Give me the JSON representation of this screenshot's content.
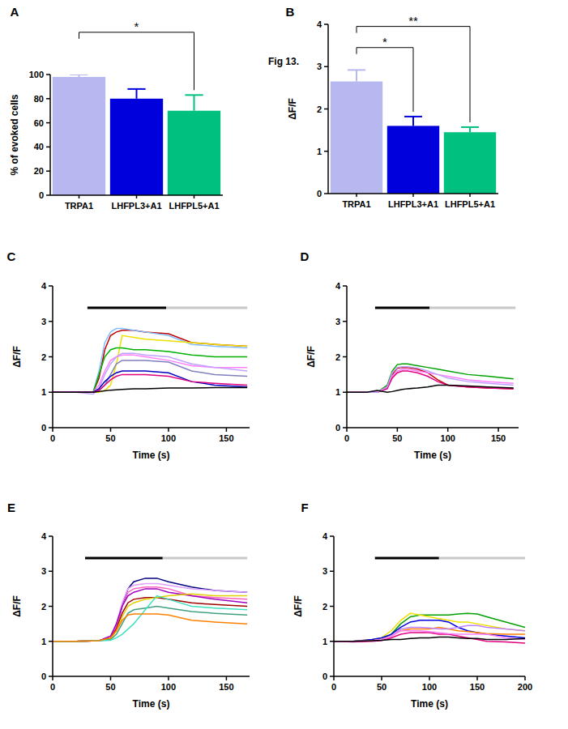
{
  "chart_data": [
    {
      "type": "bar",
      "title": "A",
      "categories": [
        "TRPA1",
        "LHFPL3+A1",
        "LHFPL5+A1"
      ],
      "values": [
        98,
        80,
        70
      ],
      "errors": [
        2,
        8,
        13
      ],
      "colors": [
        "#b8b8f0",
        "#0000dd",
        "#00c080"
      ],
      "ylabel": "% of evoked cells",
      "ylim": [
        0,
        100
      ],
      "yticks": [
        0,
        20,
        40,
        60,
        80,
        100
      ],
      "annotations": [
        {
          "text": "*",
          "from": 0,
          "to": 2,
          "y": 135
        }
      ]
    },
    {
      "type": "bar",
      "title": "B",
      "categories": [
        "TRPA1",
        "LHFPL3+A1",
        "LHFPL5+A1"
      ],
      "values": [
        2.65,
        1.6,
        1.45
      ],
      "errors": [
        0.27,
        0.22,
        0.12
      ],
      "colors": [
        "#b8b8f0",
        "#0000dd",
        "#00c080"
      ],
      "ylabel": "ΔF/F",
      "ylim": [
        0,
        4
      ],
      "yticks": [
        0,
        1,
        2,
        3,
        4
      ],
      "annotations": [
        {
          "text": "Fig 13."
        },
        {
          "text": "*",
          "from": 0,
          "to": 1,
          "y": 3.45
        },
        {
          "text": "**",
          "from": 0,
          "to": 2,
          "y": 3.95
        }
      ]
    },
    {
      "type": "line",
      "title": "C",
      "xlabel": "Time (s)",
      "ylabel": "ΔF/F",
      "xlim": [
        0,
        170
      ],
      "xticks": [
        0,
        50,
        100,
        150
      ],
      "ylim": [
        0,
        4
      ],
      "yticks": [
        0,
        1,
        2,
        3,
        4
      ],
      "stimulus": [
        {
          "start": 30,
          "end": 98,
          "color": "#000000"
        },
        {
          "start": 98,
          "end": 168,
          "color": "#c8c8c8"
        }
      ],
      "x": [
        0,
        20,
        35,
        40,
        45,
        50,
        55,
        60,
        70,
        80,
        100,
        120,
        140,
        168
      ],
      "series": [
        {
          "color": "#c00000",
          "values": [
            1,
            1,
            1,
            1.4,
            2.2,
            2.6,
            2.7,
            2.75,
            2.75,
            2.7,
            2.65,
            2.4,
            2.35,
            2.3
          ]
        },
        {
          "color": "#80c0ff",
          "values": [
            1,
            1,
            1,
            1.6,
            2.4,
            2.7,
            2.8,
            2.8,
            2.75,
            2.7,
            2.6,
            2.35,
            2.3,
            2.25
          ]
        },
        {
          "color": "#f0e000",
          "values": [
            1,
            1,
            1,
            1,
            1.05,
            1.2,
            1.8,
            2.6,
            2.55,
            2.5,
            2.45,
            2.4,
            2.35,
            2.3
          ]
        },
        {
          "color": "#00b000",
          "values": [
            1,
            1,
            1,
            1.5,
            2.0,
            2.2,
            2.25,
            2.25,
            2.2,
            2.2,
            2.15,
            2.05,
            2.0,
            2.0
          ]
        },
        {
          "color": "#ff80ff",
          "values": [
            1,
            1,
            1,
            1.2,
            1.6,
            1.9,
            2.0,
            2.05,
            2.05,
            2.0,
            1.9,
            1.75,
            1.7,
            1.7
          ]
        },
        {
          "color": "#c0a0ff",
          "values": [
            1,
            1,
            0.95,
            1.1,
            1.5,
            1.8,
            2.0,
            2.1,
            2.1,
            2.05,
            2.0,
            1.8,
            1.7,
            1.6
          ]
        },
        {
          "color": "#8080c0",
          "values": [
            1,
            1,
            1,
            1.05,
            1.2,
            1.5,
            1.8,
            1.9,
            1.9,
            1.9,
            1.85,
            1.6,
            1.5,
            1.45
          ]
        },
        {
          "color": "#0000c0",
          "values": [
            1,
            1,
            1,
            1.1,
            1.3,
            1.45,
            1.55,
            1.6,
            1.6,
            1.6,
            1.55,
            1.3,
            1.2,
            1.15
          ]
        },
        {
          "color": "#e00080",
          "values": [
            1,
            1,
            1,
            1.05,
            1.2,
            1.35,
            1.45,
            1.5,
            1.5,
            1.5,
            1.45,
            1.3,
            1.25,
            1.2
          ]
        },
        {
          "color": "#000000",
          "values": [
            1,
            1,
            1,
            1.02,
            1.04,
            1.06,
            1.07,
            1.08,
            1.1,
            1.1,
            1.12,
            1.12,
            1.13,
            1.13
          ]
        }
      ]
    },
    {
      "type": "line",
      "title": "D",
      "xlabel": "Time (s)",
      "ylabel": "ΔF/F",
      "xlim": [
        0,
        170
      ],
      "xticks": [
        0,
        50,
        100,
        150
      ],
      "ylim": [
        0,
        4
      ],
      "yticks": [
        0,
        1,
        2,
        3,
        4
      ],
      "stimulus": [
        {
          "start": 28,
          "end": 82,
          "color": "#000000"
        },
        {
          "start": 82,
          "end": 167,
          "color": "#c8c8c8"
        }
      ],
      "x": [
        0,
        20,
        30,
        40,
        45,
        50,
        55,
        60,
        70,
        80,
        90,
        100,
        120,
        140,
        165
      ],
      "series": [
        {
          "color": "#00a000",
          "values": [
            1,
            1,
            1,
            1.2,
            1.6,
            1.78,
            1.8,
            1.8,
            1.75,
            1.7,
            1.65,
            1.6,
            1.5,
            1.45,
            1.38
          ]
        },
        {
          "color": "#c00000",
          "values": [
            1,
            1,
            1,
            1.15,
            1.5,
            1.68,
            1.7,
            1.7,
            1.65,
            1.55,
            1.35,
            1.2,
            1.15,
            1.12,
            1.1
          ]
        },
        {
          "color": "#ff80ff",
          "values": [
            1,
            1,
            1,
            1.1,
            1.45,
            1.6,
            1.65,
            1.65,
            1.6,
            1.55,
            1.5,
            1.45,
            1.35,
            1.3,
            1.25
          ]
        },
        {
          "color": "#e00080",
          "values": [
            1,
            1,
            1,
            1.1,
            1.4,
            1.55,
            1.6,
            1.6,
            1.55,
            1.45,
            1.3,
            1.2,
            1.15,
            1.12,
            1.1
          ]
        },
        {
          "color": "#c0a0ff",
          "values": [
            1,
            1,
            1,
            1.15,
            1.55,
            1.7,
            1.72,
            1.72,
            1.68,
            1.6,
            1.5,
            1.4,
            1.3,
            1.25,
            1.2
          ]
        },
        {
          "color": "#000000",
          "values": [
            1,
            1,
            1.05,
            1.0,
            1.02,
            1.05,
            1.08,
            1.1,
            1.12,
            1.15,
            1.2,
            1.2,
            1.18,
            1.15,
            1.12
          ]
        }
      ]
    },
    {
      "type": "line",
      "title": "E",
      "xlabel": "Time (s)",
      "ylabel": "ΔF/F",
      "xlim": [
        0,
        170
      ],
      "xticks": [
        0,
        50,
        100,
        150
      ],
      "ylim": [
        0,
        4
      ],
      "yticks": [
        0,
        1,
        2,
        3,
        4
      ],
      "stimulus": [
        {
          "start": 28,
          "end": 95,
          "color": "#000000"
        },
        {
          "start": 95,
          "end": 168,
          "color": "#c8c8c8"
        }
      ],
      "x": [
        0,
        20,
        40,
        50,
        55,
        60,
        65,
        70,
        80,
        90,
        100,
        120,
        140,
        168
      ],
      "series": [
        {
          "color": "#000080",
          "values": [
            1,
            1,
            1.02,
            1.1,
            1.4,
            2.0,
            2.5,
            2.7,
            2.8,
            2.8,
            2.7,
            2.55,
            2.45,
            2.4
          ]
        },
        {
          "color": "#e0a0ff",
          "values": [
            1,
            1,
            1.02,
            1.1,
            1.5,
            2.1,
            2.5,
            2.6,
            2.65,
            2.65,
            2.6,
            2.5,
            2.45,
            2.4
          ]
        },
        {
          "color": "#ff60c0",
          "values": [
            1,
            1,
            1.02,
            1.1,
            1.4,
            2.0,
            2.4,
            2.5,
            2.55,
            2.55,
            2.5,
            2.3,
            2.25,
            2.2
          ]
        },
        {
          "color": "#a000c0",
          "values": [
            1,
            1,
            1.02,
            1.15,
            1.5,
            2.0,
            2.3,
            2.4,
            2.5,
            2.5,
            2.4,
            2.3,
            2.2,
            2.1
          ]
        },
        {
          "color": "#a00000",
          "values": [
            1,
            1,
            1.02,
            1.1,
            1.35,
            1.8,
            2.1,
            2.2,
            2.25,
            2.25,
            2.2,
            2.1,
            2.05,
            2.0
          ]
        },
        {
          "color": "#e0d000",
          "values": [
            1,
            1,
            1.02,
            1.08,
            1.3,
            1.7,
            2.0,
            2.1,
            2.2,
            2.25,
            2.3,
            2.35,
            2.3,
            2.3
          ]
        },
        {
          "color": "#40a080",
          "values": [
            1,
            1,
            1.02,
            1.05,
            1.2,
            1.5,
            1.8,
            1.9,
            1.95,
            2.0,
            1.95,
            1.85,
            1.8,
            1.75
          ]
        },
        {
          "color": "#40e0c0",
          "values": [
            1,
            1,
            1.02,
            1.03,
            1.1,
            1.2,
            1.35,
            1.5,
            1.9,
            2.3,
            2.2,
            2.0,
            1.95,
            1.9
          ]
        },
        {
          "color": "#ff8000",
          "values": [
            1,
            1,
            1.02,
            1.1,
            1.3,
            1.6,
            1.75,
            1.78,
            1.78,
            1.78,
            1.75,
            1.6,
            1.55,
            1.5
          ]
        }
      ]
    },
    {
      "type": "line",
      "title": "F",
      "xlabel": "Time (s)",
      "ylabel": "ΔF/F",
      "xlim": [
        0,
        200
      ],
      "xticks": [
        0,
        50,
        100,
        150,
        200
      ],
      "ylim": [
        0,
        4
      ],
      "yticks": [
        0,
        1,
        2,
        3,
        4
      ],
      "stimulus": [
        {
          "start": 43,
          "end": 110,
          "color": "#000000"
        },
        {
          "start": 110,
          "end": 200,
          "color": "#c8c8c8"
        }
      ],
      "x": [
        0,
        20,
        40,
        50,
        60,
        70,
        80,
        90,
        100,
        110,
        120,
        130,
        140,
        150,
        160,
        180,
        200
      ],
      "series": [
        {
          "color": "#00a000",
          "values": [
            1,
            1,
            1.02,
            1.05,
            1.2,
            1.5,
            1.7,
            1.75,
            1.75,
            1.75,
            1.75,
            1.78,
            1.8,
            1.78,
            1.7,
            1.55,
            1.4
          ]
        },
        {
          "color": "#f0e000",
          "values": [
            1,
            1,
            1.05,
            1.1,
            1.3,
            1.6,
            1.8,
            1.75,
            1.7,
            1.65,
            1.6,
            1.55,
            1.55,
            1.5,
            1.45,
            1.35,
            1.3
          ]
        },
        {
          "color": "#0000e0",
          "values": [
            1,
            1,
            1.05,
            1.1,
            1.2,
            1.4,
            1.55,
            1.6,
            1.6,
            1.6,
            1.55,
            1.4,
            1.3,
            1.25,
            1.2,
            1.15,
            1.1
          ]
        },
        {
          "color": "#ff8000",
          "values": [
            1,
            1,
            1.02,
            1.05,
            1.15,
            1.3,
            1.35,
            1.35,
            1.35,
            1.4,
            1.35,
            1.3,
            1.28,
            1.25,
            1.22,
            1.2,
            1.2
          ]
        },
        {
          "color": "#c080ff",
          "values": [
            1,
            1,
            1.02,
            1.05,
            1.15,
            1.35,
            1.4,
            1.4,
            1.38,
            1.35,
            1.35,
            1.4,
            1.45,
            1.45,
            1.4,
            1.35,
            1.3
          ]
        },
        {
          "color": "#e00080",
          "values": [
            1,
            0.98,
            1,
            1.02,
            1.1,
            1.2,
            1.25,
            1.25,
            1.25,
            1.2,
            1.2,
            1.15,
            1.1,
            1.05,
            1.0,
            0.98,
            0.95
          ]
        },
        {
          "color": "#ff80ff",
          "values": [
            1,
            1,
            1.02,
            1.05,
            1.15,
            1.3,
            1.3,
            1.3,
            1.28,
            1.25,
            1.22,
            1.2,
            1.2,
            1.2,
            1.2,
            1.1,
            1.05
          ]
        },
        {
          "color": "#000000",
          "values": [
            1,
            1,
            1.02,
            1.03,
            1.05,
            1.05,
            1.08,
            1.1,
            1.1,
            1.12,
            1.12,
            1.1,
            1.08,
            1.08,
            1.05,
            1.05,
            1.08
          ]
        }
      ]
    }
  ]
}
